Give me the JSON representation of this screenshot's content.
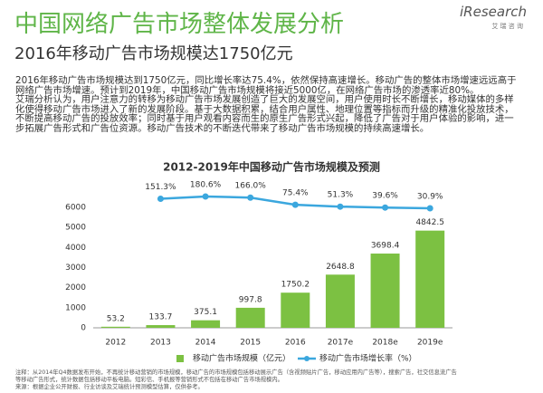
{
  "header": {
    "title": "中国网络广告市场整体发展分析",
    "subtitle": "2016年移动广告市场规模达1750亿元",
    "logo": "iResearch",
    "logo_sub": "艾 瑞 咨 询"
  },
  "text": {
    "lines": [
      "2016年移动广告市场规模达到1750亿元，同比增长率达75.4%，依然保持高速增长。移动广告的整体市场增速远远高于",
      "网络广告市场增速。预计到2019年，中国移动广告市场规模将接近5000亿，在网络广告市场的渗透率近80%。",
      "艾瑞分析认为，用户注意力的转移为移动广告市场发展创造了巨大的发展空间，用户使用时长不断增长，移动媒体的多样",
      "化使得移动广告市场进入了新的发展阶段。基于大数据积累，结合用户属性、地理位置等指标而升级的精准化投放技术，",
      "不断提高移动广告的投放效率；同时基于用户观看内容而生的原生广告形式兴起，降低了广告对于用户体验的影响，进一",
      "步拓展广告形式和广告位资源。移动广告技术的不断迭代带来了移动广告市场规模的持续高速增长。"
    ]
  },
  "chart_data": {
    "type": "bar",
    "title": "2012-2019年中国移动广告市场规模及预测",
    "categories": [
      "2012",
      "2013",
      "2014",
      "2015",
      "2016",
      "2017e",
      "2018e",
      "2019e"
    ],
    "series": [
      {
        "name": "移动广告市场规模（亿元）",
        "color": "#7cc142",
        "values": [
          53.2,
          133.7,
          375.1,
          997.8,
          1750.2,
          2648.8,
          3698.4,
          4842.5
        ]
      },
      {
        "name": "移动广告市场增长率（%）",
        "color": "#3ba7de",
        "type": "line",
        "axis": "y2",
        "values": [
          null,
          151.3,
          180.6,
          166.0,
          75.4,
          51.3,
          39.6,
          30.9
        ],
        "value_labels": [
          null,
          "151.3%",
          "180.6%",
          "166.0%",
          "75.4%",
          "51.3%",
          "39.6%",
          "30.9%"
        ]
      }
    ],
    "ylim": [
      0,
      6000
    ],
    "yticks": [
      0,
      1000,
      2000,
      3000,
      4000,
      5000,
      6000
    ],
    "y2lim": [
      -1490,
      42
    ],
    "grid": false,
    "legend": "bottom"
  },
  "notes": {
    "lines": [
      "注释：从2014年Q4数据发布开始，不再统计移动营销的市场规模，移动广告的市场规模包括移动展示广告（含视频贴片广告，移动应用内广告等），搜索广告，社交信息流广告",
      "等移动广告形式，统计数据包括移动平板电脑。短彩信、手机报等营销形式不包括在移动广告市场规模内。"
    ],
    "source": "来源：根据企业公开财报、行业访谈及艾瑞统计预测模型估算，仅供参考。"
  }
}
